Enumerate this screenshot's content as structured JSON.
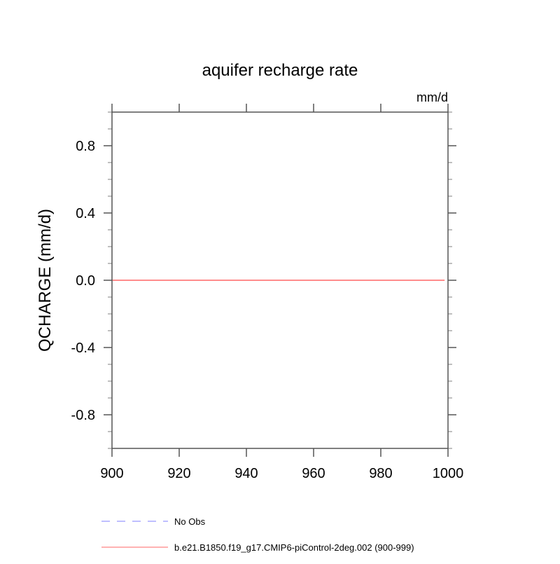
{
  "chart_data": {
    "type": "line",
    "title": "aquifer recharge rate",
    "units_label": "mm/d",
    "xlabel": "",
    "ylabel": "QCHARGE  (mm/d)",
    "xlim": [
      900,
      1000
    ],
    "ylim": [
      -1,
      1
    ],
    "xticks": [
      900,
      920,
      940,
      960,
      980,
      1000
    ],
    "xtick_labels": [
      "900",
      "920",
      "940",
      "960",
      "980",
      "1000"
    ],
    "yticks": [
      -0.8,
      -0.4,
      0.0,
      0.4,
      0.8
    ],
    "ytick_labels": [
      "-0.8",
      "-0.4",
      "0.0",
      "0.4",
      "0.8"
    ],
    "grid": false,
    "legend_placement": "bottom",
    "series": [
      {
        "name": "No Obs",
        "color": "#7f7fff",
        "dash": "dashed",
        "x": [],
        "y": []
      },
      {
        "name": "b.e21.B1850.f19_g17.CMIP6-piControl-2deg.002 (900-999)",
        "color": "#ff6666",
        "dash": "solid",
        "x": [
          900,
          999
        ],
        "y": [
          0,
          0
        ]
      }
    ]
  }
}
